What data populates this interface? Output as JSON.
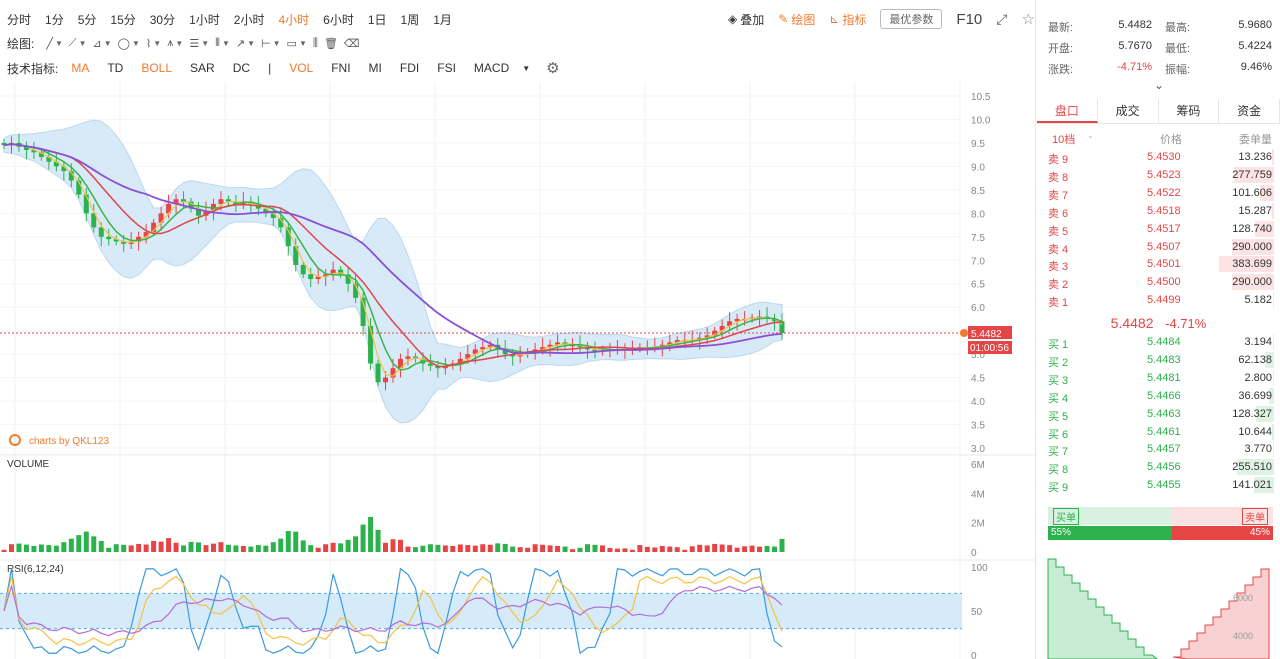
{
  "timeframes": [
    {
      "label": "分时",
      "active": false
    },
    {
      "label": "1分",
      "active": false
    },
    {
      "label": "5分",
      "active": false
    },
    {
      "label": "15分",
      "active": false
    },
    {
      "label": "30分",
      "active": false
    },
    {
      "label": "1小时",
      "active": false
    },
    {
      "label": "2小时",
      "active": false
    },
    {
      "label": "4小时",
      "active": true
    },
    {
      "label": "6小时",
      "active": false
    },
    {
      "label": "1日",
      "active": false
    },
    {
      "label": "1周",
      "active": false
    },
    {
      "label": "1月",
      "active": false
    }
  ],
  "toolbar_right": {
    "overlay": "叠加",
    "draw": "绘图",
    "indicator": "指标",
    "params": "最优参数",
    "f10": "F10"
  },
  "draw_label": "绘图:",
  "indicators_label": "技术指标:",
  "indicators": [
    {
      "label": "MA",
      "on": true
    },
    {
      "label": "TD",
      "on": false
    },
    {
      "label": "BOLL",
      "on": true
    },
    {
      "label": "SAR",
      "on": false
    },
    {
      "label": "DC",
      "on": false
    },
    {
      "label": "|",
      "on": false
    },
    {
      "label": "VOL",
      "on": true
    },
    {
      "label": "FNI",
      "on": false
    },
    {
      "label": "MI",
      "on": false
    },
    {
      "label": "FDI",
      "on": false
    },
    {
      "label": "FSI",
      "on": false
    },
    {
      "label": "MACD",
      "on": false
    }
  ],
  "watermark": "charts by QKL123",
  "volume_label": "VOLUME",
  "rsi_label": "RSI(6,12,24)",
  "price_tag": "5.4482",
  "countdown_tag": "01:00:56",
  "quote": {
    "latest_label": "最新:",
    "latest": "5.4482",
    "high_label": "最高:",
    "high": "5.9680",
    "open_label": "开盘:",
    "open": "5.7670",
    "low_label": "最低:",
    "low": "5.4224",
    "change_label": "涨跌:",
    "change": "-4.71%",
    "amp_label": "振幅:",
    "amp": "9.46%"
  },
  "tabs": [
    "盘口",
    "成交",
    "筹码",
    "资金"
  ],
  "orderbook_head": {
    "depth": "10档",
    "price": "价格",
    "qty": "委单量"
  },
  "asks": [
    {
      "label": "卖 9",
      "price": "5.4530",
      "qty": "13.236",
      "frac": 0.03
    },
    {
      "label": "卖 8",
      "price": "5.4523",
      "qty": "277.759",
      "frac": 0.72
    },
    {
      "label": "卖 7",
      "price": "5.4522",
      "qty": "101.606",
      "frac": 0.26
    },
    {
      "label": "卖 6",
      "price": "5.4518",
      "qty": "15.287",
      "frac": 0.04
    },
    {
      "label": "卖 5",
      "price": "5.4517",
      "qty": "128.740",
      "frac": 0.34
    },
    {
      "label": "卖 4",
      "price": "5.4507",
      "qty": "290.000",
      "frac": 0.76
    },
    {
      "label": "卖 3",
      "price": "5.4501",
      "qty": "383.699",
      "frac": 1.0
    },
    {
      "label": "卖 2",
      "price": "5.4500",
      "qty": "290.000",
      "frac": 0.76
    },
    {
      "label": "卖 1",
      "price": "5.4499",
      "qty": "5.182",
      "frac": 0.01
    }
  ],
  "mid": {
    "price": "5.4482",
    "change": "-4.71%"
  },
  "bids": [
    {
      "label": "买 1",
      "price": "5.4484",
      "qty": "3.194",
      "frac": 0.01
    },
    {
      "label": "买 2",
      "price": "5.4483",
      "qty": "62.138",
      "frac": 0.16
    },
    {
      "label": "买 3",
      "price": "5.4481",
      "qty": "2.800",
      "frac": 0.01
    },
    {
      "label": "买 4",
      "price": "5.4466",
      "qty": "36.699",
      "frac": 0.1
    },
    {
      "label": "买 5",
      "price": "5.4463",
      "qty": "128.327",
      "frac": 0.33
    },
    {
      "label": "买 6",
      "price": "5.4461",
      "qty": "10.644",
      "frac": 0.03
    },
    {
      "label": "买 7",
      "price": "5.4457",
      "qty": "3.770",
      "frac": 0.01
    },
    {
      "label": "买 8",
      "price": "5.4456",
      "qty": "255.510",
      "frac": 0.67
    },
    {
      "label": "买 9",
      "price": "5.4455",
      "qty": "141.021",
      "frac": 0.37
    }
  ],
  "ratio": {
    "buy_label": "买单",
    "sell_label": "卖单",
    "buy": "55%",
    "sell": "45%",
    "buy_frac": 0.55
  },
  "depth_labels": {
    "y1": "6000",
    "y2": "4000"
  },
  "colors": {
    "up": "#e64545",
    "down": "#2bb24c",
    "accent": "#f27a2e",
    "ma5": "#f5c242",
    "ma10": "#3bb34a",
    "ma20": "#e0454a",
    "ma60": "#8a4fd6",
    "boll": "#cfe6f7",
    "rsi_fill": "#d6ebfa"
  },
  "chart_data": [
    {
      "type": "line",
      "name": "price-candles",
      "ylim": [
        3.0,
        10.5
      ],
      "yticks": [
        "10.5",
        "10.0",
        "9.5",
        "9.0",
        "8.5",
        "8.0",
        "7.5",
        "7.0",
        "6.5",
        "6.0",
        "5.5",
        "5.0",
        "4.5",
        "4.0",
        "3.5",
        "3.0"
      ],
      "closes": [
        9.45,
        9.5,
        9.42,
        9.35,
        9.3,
        9.2,
        9.1,
        9.0,
        8.9,
        8.7,
        8.4,
        8.0,
        7.7,
        7.5,
        7.45,
        7.4,
        7.35,
        7.4,
        7.5,
        7.6,
        7.8,
        8.0,
        8.2,
        8.3,
        8.25,
        8.1,
        7.95,
        8.05,
        8.2,
        8.3,
        8.25,
        8.2,
        8.25,
        8.2,
        8.1,
        8.0,
        7.9,
        7.7,
        7.3,
        6.9,
        6.7,
        6.6,
        6.65,
        6.7,
        6.8,
        6.7,
        6.5,
        6.2,
        5.6,
        4.8,
        4.4,
        4.5,
        4.7,
        4.9,
        4.95,
        4.9,
        4.8,
        4.75,
        4.7,
        4.75,
        4.8,
        4.9,
        5.0,
        5.1,
        5.15,
        5.2,
        5.1,
        5.0,
        4.95,
        5.0,
        5.05,
        5.1,
        5.15,
        5.2,
        5.25,
        5.2,
        5.2,
        5.15,
        5.1,
        5.05,
        5.1,
        5.1,
        5.1,
        5.12,
        5.12,
        5.15,
        5.15,
        5.15,
        5.2,
        5.25,
        5.3,
        5.3,
        5.3,
        5.35,
        5.4,
        5.5,
        5.6,
        5.7,
        5.75,
        5.75,
        5.78,
        5.8,
        5.75,
        5.7,
        5.45
      ]
    },
    {
      "type": "bar",
      "name": "volume",
      "ylim": [
        0,
        6
      ],
      "yticks": [
        "6M",
        "4M",
        "2M",
        "0"
      ]
    },
    {
      "type": "line",
      "name": "rsi",
      "ylim": [
        0,
        100
      ],
      "yticks": [
        "100",
        "50",
        "0"
      ],
      "bands": [
        30,
        70
      ]
    }
  ]
}
